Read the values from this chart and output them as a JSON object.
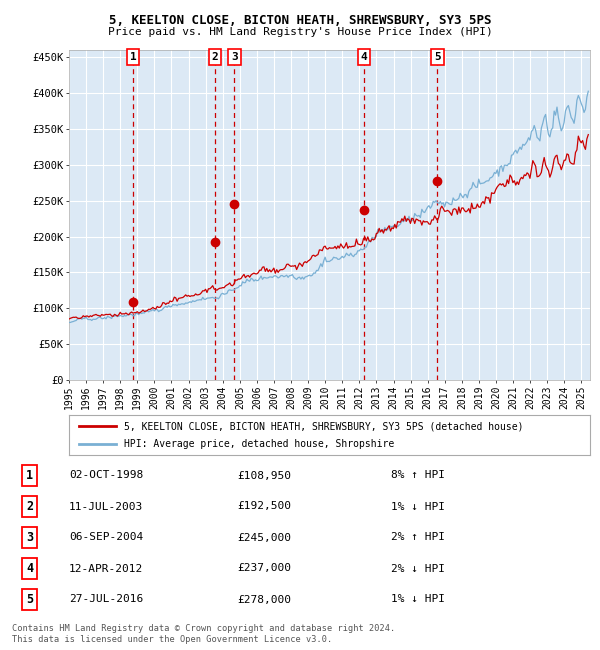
{
  "title_line1": "5, KEELTON CLOSE, BICTON HEATH, SHREWSBURY, SY3 5PS",
  "title_line2": "Price paid vs. HM Land Registry's House Price Index (HPI)",
  "ylim": [
    0,
    460000
  ],
  "xlim_start": 1995.0,
  "xlim_end": 2025.5,
  "bg_color": "#dce9f5",
  "grid_color": "#ffffff",
  "red_line_color": "#cc0000",
  "blue_line_color": "#7ab0d4",
  "dashed_line_color": "#cc0000",
  "marker_color": "#cc0000",
  "sale_dates_decimal": [
    1998.75,
    2003.53,
    2004.68,
    2012.28,
    2016.57
  ],
  "sale_prices": [
    108950,
    192500,
    245000,
    237000,
    278000
  ],
  "sale_labels": [
    "1",
    "2",
    "3",
    "4",
    "5"
  ],
  "legend_line1": "5, KEELTON CLOSE, BICTON HEATH, SHREWSBURY, SY3 5PS (detached house)",
  "legend_line2": "HPI: Average price, detached house, Shropshire",
  "table_entries": [
    [
      "1",
      "02-OCT-1998",
      "£108,950",
      "8% ↑ HPI"
    ],
    [
      "2",
      "11-JUL-2003",
      "£192,500",
      "1% ↓ HPI"
    ],
    [
      "3",
      "06-SEP-2004",
      "£245,000",
      "2% ↑ HPI"
    ],
    [
      "4",
      "12-APR-2012",
      "£237,000",
      "2% ↓ HPI"
    ],
    [
      "5",
      "27-JUL-2016",
      "£278,000",
      "1% ↓ HPI"
    ]
  ],
  "footer_line1": "Contains HM Land Registry data © Crown copyright and database right 2024.",
  "footer_line2": "This data is licensed under the Open Government Licence v3.0.",
  "ytick_labels": [
    "£0",
    "£50K",
    "£100K",
    "£150K",
    "£200K",
    "£250K",
    "£300K",
    "£350K",
    "£400K",
    "£450K"
  ],
  "ytick_values": [
    0,
    50000,
    100000,
    150000,
    200000,
    250000,
    300000,
    350000,
    400000,
    450000
  ],
  "xtick_years": [
    1995,
    1996,
    1997,
    1998,
    1999,
    2000,
    2001,
    2002,
    2003,
    2004,
    2005,
    2006,
    2007,
    2008,
    2009,
    2010,
    2011,
    2012,
    2013,
    2014,
    2015,
    2016,
    2017,
    2018,
    2019,
    2020,
    2021,
    2022,
    2023,
    2024,
    2025
  ]
}
